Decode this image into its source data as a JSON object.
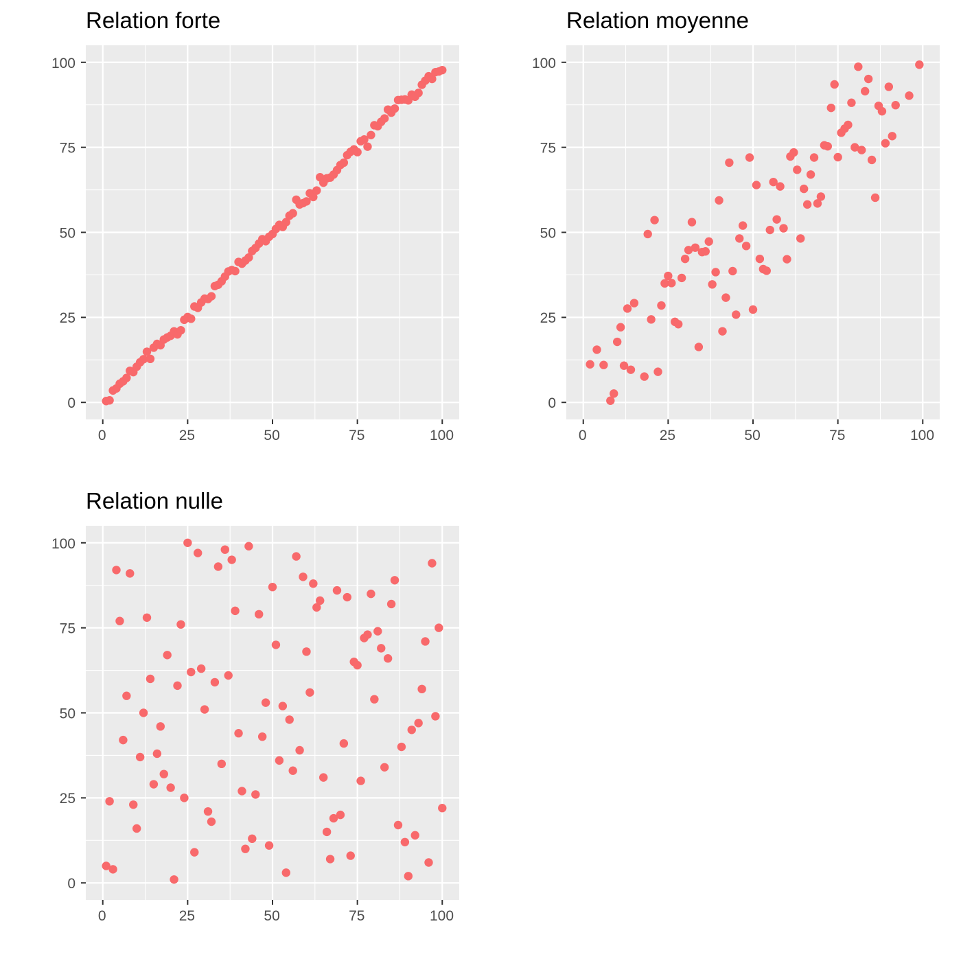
{
  "colors": {
    "point": "#F8696B",
    "panel_background": "#EBEBEB",
    "grid": "#FFFFFF",
    "tick": "#333333",
    "tick_label": "#4D4D4D",
    "title": "#000000"
  },
  "chart_data": [
    {
      "type": "scatter",
      "title": "Relation forte",
      "xlabel": "",
      "ylabel": "",
      "xlim": [
        -5,
        105
      ],
      "ylim": [
        -5,
        105
      ],
      "x_ticks": [
        "0",
        "25",
        "50",
        "75",
        "100"
      ],
      "y_ticks": [
        "0",
        "25",
        "50",
        "75",
        "100"
      ],
      "grid": true,
      "x": [
        1,
        2,
        3,
        4,
        5,
        6,
        7,
        8,
        9,
        10,
        11,
        12,
        13,
        14,
        15,
        16,
        17,
        18,
        19,
        20,
        21,
        22,
        23,
        24,
        25,
        26,
        27,
        28,
        29,
        30,
        31,
        32,
        33,
        34,
        35,
        36,
        37,
        38,
        39,
        40,
        41,
        42,
        43,
        44,
        45,
        46,
        47,
        48,
        49,
        50,
        51,
        52,
        53,
        54,
        55,
        56,
        57,
        58,
        59,
        60,
        61,
        62,
        63,
        64,
        65,
        66,
        67,
        68,
        69,
        70,
        71,
        72,
        73,
        74,
        75,
        76,
        77,
        78,
        79,
        80,
        81,
        82,
        83,
        84,
        85,
        86,
        87,
        88,
        89,
        90,
        91,
        92,
        93,
        94,
        95,
        96,
        97,
        98,
        99,
        100
      ],
      "y": [
        0.4,
        0.6,
        3.5,
        4.1,
        5.5,
        6.2,
        7.2,
        9.3,
        8.9,
        10.5,
        11.8,
        12.7,
        14.9,
        12.8,
        16.1,
        17.2,
        16.8,
        18.5,
        19.1,
        19.6,
        20.9,
        20.0,
        21.2,
        24.3,
        25.1,
        24.6,
        28.2,
        27.8,
        29.4,
        30.5,
        30.4,
        31.2,
        34.2,
        34.6,
        35.6,
        37.0,
        38.5,
        38.9,
        38.6,
        41.3,
        40.8,
        41.7,
        42.6,
        44.5,
        45.4,
        46.7,
        48.0,
        47.4,
        48.7,
        49.5,
        51.0,
        52.2,
        51.6,
        53.0,
        54.9,
        55.6,
        59.6,
        58.2,
        58.6,
        59.1,
        61.5,
        60.4,
        62.3,
        66.2,
        64.6,
        65.9,
        66.1,
        67.0,
        68.3,
        69.8,
        70.5,
        72.7,
        73.7,
        74.4,
        73.6,
        76.8,
        77.3,
        75.2,
        78.6,
        81.5,
        81.2,
        82.5,
        83.5,
        86.1,
        85.2,
        86.4,
        88.9,
        89.0,
        89.1,
        88.8,
        90.5,
        89.9,
        91.0,
        93.4,
        94.6,
        95.9,
        95.1,
        97.1,
        97.3,
        97.7
      ]
    },
    {
      "type": "scatter",
      "title": "Relation moyenne",
      "xlabel": "",
      "ylabel": "",
      "xlim": [
        -5,
        105
      ],
      "ylim": [
        -5,
        105
      ],
      "x_ticks": [
        "0",
        "25",
        "50",
        "75",
        "100"
      ],
      "y_ticks": [
        "0",
        "25",
        "50",
        "75",
        "100"
      ],
      "grid": true,
      "x": [
        2,
        4,
        6,
        8,
        9,
        10,
        11,
        12,
        13,
        14,
        15,
        18,
        19,
        20,
        21,
        22,
        23,
        24,
        25,
        26,
        27,
        28,
        29,
        30,
        31,
        32,
        33,
        34,
        35,
        36,
        37,
        38,
        39,
        40,
        41,
        42,
        43,
        44,
        45,
        46,
        47,
        48,
        49,
        50,
        51,
        52,
        53,
        54,
        55,
        56,
        57,
        58,
        59,
        60,
        61,
        62,
        63,
        64,
        65,
        66,
        67,
        68,
        69,
        70,
        71,
        72,
        73,
        74,
        75,
        76,
        77,
        78,
        79,
        80,
        81,
        82,
        83,
        84,
        85,
        86,
        87,
        88,
        89,
        90,
        91,
        92,
        96,
        99
      ],
      "y": [
        11.2,
        15.5,
        11.0,
        0.5,
        2.6,
        17.8,
        22.1,
        10.8,
        27.6,
        9.6,
        29.2,
        7.6,
        49.5,
        24.4,
        53.6,
        9.0,
        28.5,
        35.0,
        37.2,
        35.1,
        23.7,
        23.0,
        36.6,
        42.2,
        44.8,
        53.0,
        45.5,
        16.3,
        44.2,
        44.4,
        47.3,
        34.7,
        38.3,
        59.4,
        20.9,
        30.8,
        70.5,
        38.6,
        25.8,
        48.2,
        52.0,
        46.0,
        72.0,
        27.3,
        63.9,
        42.2,
        39.2,
        38.7,
        50.7,
        64.8,
        53.8,
        63.5,
        51.2,
        42.1,
        72.3,
        73.5,
        68.4,
        48.2,
        62.8,
        58.2,
        67.0,
        72.0,
        58.5,
        60.5,
        75.6,
        75.3,
        86.6,
        93.5,
        72.1,
        79.3,
        80.5,
        81.6,
        88.1,
        75.0,
        98.7,
        74.2,
        91.5,
        95.1,
        71.3,
        60.2,
        87.2,
        85.6,
        76.2,
        92.8,
        78.3,
        87.4,
        90.2,
        99.3
      ]
    },
    {
      "type": "scatter",
      "title": "Relation nulle",
      "xlabel": "",
      "ylabel": "",
      "xlim": [
        -5,
        105
      ],
      "ylim": [
        -5,
        105
      ],
      "x_ticks": [
        "0",
        "25",
        "50",
        "75",
        "100"
      ],
      "y_ticks": [
        "0",
        "25",
        "50",
        "75",
        "100"
      ],
      "grid": true,
      "x": [
        1,
        2,
        3,
        4,
        5,
        6,
        7,
        8,
        9,
        10,
        11,
        12,
        13,
        14,
        15,
        16,
        17,
        18,
        19,
        20,
        21,
        22,
        23,
        24,
        25,
        26,
        27,
        28,
        29,
        30,
        31,
        32,
        33,
        34,
        35,
        36,
        37,
        38,
        39,
        40,
        41,
        42,
        43,
        44,
        45,
        46,
        47,
        48,
        49,
        50,
        51,
        52,
        53,
        54,
        55,
        56,
        57,
        58,
        59,
        60,
        61,
        62,
        63,
        64,
        65,
        66,
        67,
        68,
        69,
        70,
        71,
        72,
        73,
        74,
        75,
        76,
        77,
        78,
        79,
        80,
        81,
        82,
        83,
        84,
        85,
        86,
        87,
        88,
        89,
        90,
        91,
        92,
        93,
        94,
        95,
        96,
        97,
        98,
        99,
        100
      ],
      "y": [
        5,
        24,
        4,
        92,
        77,
        42,
        55,
        91,
        23,
        16,
        37,
        50,
        78,
        60,
        29,
        38,
        46,
        32,
        67,
        28,
        1,
        58,
        76,
        25,
        100,
        62,
        9,
        97,
        63,
        51,
        21,
        18,
        59,
        93,
        35,
        98,
        61,
        95,
        80,
        44,
        27,
        10,
        99,
        13,
        26,
        79,
        43,
        53,
        11,
        87,
        70,
        36,
        52,
        3,
        48,
        33,
        96,
        39,
        90,
        68,
        56,
        88,
        81,
        83,
        31,
        15,
        7,
        19,
        86,
        20,
        41,
        84,
        8,
        65,
        64,
        30,
        72,
        73,
        85,
        54,
        74,
        69,
        34,
        66,
        82,
        89,
        17,
        40,
        12,
        2,
        45,
        14,
        47,
        57,
        71,
        6,
        94,
        49,
        75,
        22
      ]
    }
  ]
}
